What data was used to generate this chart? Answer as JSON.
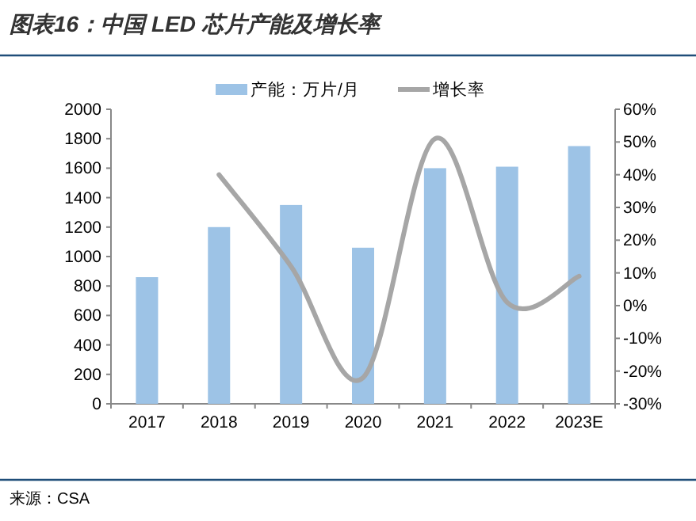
{
  "chart_data": {
    "type": "bar",
    "title": "图表16：中国 LED 芯片产能及增长率",
    "categories": [
      "2017",
      "2018",
      "2019",
      "2020",
      "2021",
      "2022",
      "2023E"
    ],
    "series": [
      {
        "name": "产能：万片/月",
        "color": "#9dc3e6",
        "values": [
          860,
          1200,
          1350,
          1060,
          1600,
          1610,
          1750
        ]
      },
      {
        "name": "增长率",
        "type": "line",
        "axis": "y2",
        "color": "#a6a6a6",
        "values": [
          null,
          40,
          12,
          -22,
          51,
          1,
          9
        ]
      }
    ],
    "ylim": [
      0,
      2000
    ],
    "yticks": [
      0,
      200,
      400,
      600,
      800,
      1000,
      1200,
      1400,
      1600,
      1800,
      2000
    ],
    "y2lim": [
      -30,
      60
    ],
    "y2ticks": [
      {
        "value": -30,
        "label": "-30%"
      },
      {
        "value": -20,
        "label": "-20%"
      },
      {
        "value": -10,
        "label": "-10%"
      },
      {
        "value": 0,
        "label": "0%"
      },
      {
        "value": 10,
        "label": "10%"
      },
      {
        "value": 20,
        "label": "20%"
      },
      {
        "value": 30,
        "label": "30%"
      },
      {
        "value": 40,
        "label": "40%"
      },
      {
        "value": 50,
        "label": "50%"
      },
      {
        "value": 60,
        "label": "60%"
      }
    ],
    "legend": "top",
    "grid": false,
    "marker": "none",
    "annotations": [
      "来源：CSA"
    ]
  }
}
